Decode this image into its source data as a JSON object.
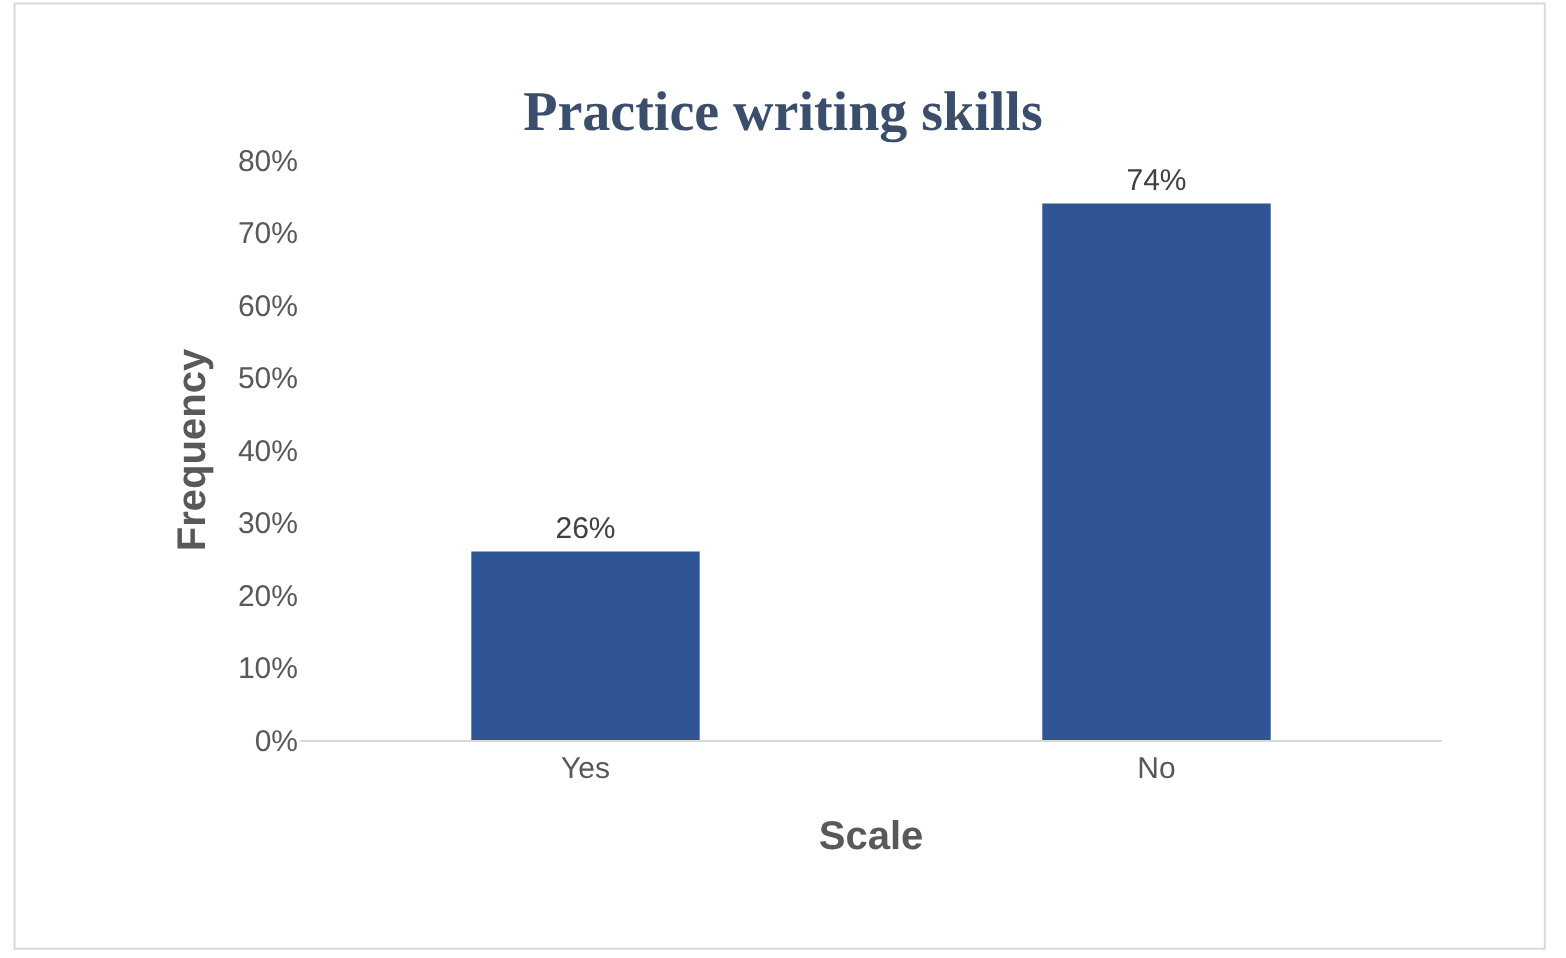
{
  "chart_data": {
    "type": "bar",
    "title": "Practice writing skills",
    "xlabel": "Scale",
    "ylabel": "Frequency",
    "categories": [
      "Yes",
      "No"
    ],
    "values": [
      26,
      74
    ],
    "color": "#2f5597",
    "value_labels": [
      "26%",
      "74%"
    ],
    "ylim": [
      0,
      80
    ],
    "yticks": [
      {
        "value": 0,
        "label": "0%"
      },
      {
        "value": 10,
        "label": "10%"
      },
      {
        "value": 20,
        "label": "20%"
      },
      {
        "value": 30,
        "label": "30%"
      },
      {
        "value": 40,
        "label": "40%"
      },
      {
        "value": 50,
        "label": "50%"
      },
      {
        "value": 60,
        "label": "60%"
      },
      {
        "value": 70,
        "label": "70%"
      },
      {
        "value": 80,
        "label": "80%"
      }
    ],
    "grid": false,
    "legend": false
  }
}
